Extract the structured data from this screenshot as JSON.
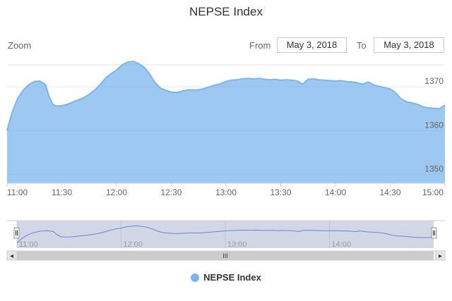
{
  "chart_data": {
    "type": "area",
    "title": "NEPSE Index",
    "xlabel": "",
    "ylabel": "",
    "x_tick_labels": [
      "11:00",
      "11:30",
      "12:00",
      "12:30",
      "13:00",
      "13:30",
      "14:00",
      "14:30",
      "15:00"
    ],
    "y_tick_labels": [
      "1350",
      "1360",
      "1370"
    ],
    "ylim": [
      1348,
      1375
    ],
    "xlim": [
      "11:00",
      "15:00"
    ],
    "grid": true,
    "legend_position": "bottom-center",
    "series": [
      {
        "name": "NEPSE Index",
        "color": "#7cb5ec",
        "x": [
          "11:00",
          "11:03",
          "11:06",
          "11:09",
          "11:12",
          "11:15",
          "11:18",
          "11:21",
          "11:23",
          "11:25",
          "11:27",
          "11:30",
          "11:33",
          "11:36",
          "11:39",
          "11:42",
          "11:45",
          "11:48",
          "11:51",
          "11:54",
          "11:57",
          "12:00",
          "12:03",
          "12:06",
          "12:09",
          "12:12",
          "12:15",
          "12:18",
          "12:21",
          "12:24",
          "12:27",
          "12:30",
          "12:33",
          "12:36",
          "12:39",
          "12:42",
          "12:45",
          "12:48",
          "12:51",
          "12:54",
          "12:57",
          "13:00",
          "13:03",
          "13:06",
          "13:09",
          "13:12",
          "13:15",
          "13:18",
          "13:21",
          "13:24",
          "13:27",
          "13:30",
          "13:33",
          "13:36",
          "13:39",
          "13:42",
          "13:45",
          "13:48",
          "13:51",
          "13:54",
          "13:57",
          "14:00",
          "14:03",
          "14:06",
          "14:09",
          "14:12",
          "14:15",
          "14:18",
          "14:21",
          "14:24",
          "14:27",
          "14:30",
          "14:33",
          "14:36",
          "14:39",
          "14:42",
          "14:45",
          "14:48",
          "14:51",
          "14:54",
          "14:57",
          "15:00"
        ],
        "values": [
          1360,
          1364.5,
          1367.5,
          1369.3,
          1370.5,
          1371.2,
          1371.3,
          1370.5,
          1367.8,
          1366,
          1365.6,
          1365.7,
          1366,
          1366.5,
          1367,
          1367.5,
          1368.3,
          1369.2,
          1370.5,
          1372,
          1373,
          1373.8,
          1375,
          1375.6,
          1375.8,
          1375.3,
          1374.5,
          1373,
          1371,
          1369.7,
          1369.2,
          1368.8,
          1368.7,
          1369,
          1369.3,
          1369.3,
          1369.3,
          1369.6,
          1370,
          1370.4,
          1370.7,
          1371.2,
          1371.5,
          1371.6,
          1371.8,
          1371.9,
          1371.8,
          1371.9,
          1371.7,
          1371.6,
          1371.7,
          1371.5,
          1371.6,
          1371.5,
          1371.3,
          1370.6,
          1371.7,
          1371.8,
          1371.6,
          1371.5,
          1371.4,
          1371.3,
          1371.4,
          1371.2,
          1371.1,
          1370.9,
          1370.6,
          1371.1,
          1370.4,
          1370.1,
          1369.8,
          1369.5,
          1368.6,
          1367.2,
          1366.6,
          1366.3,
          1366,
          1365.4,
          1365.2,
          1365.1,
          1365,
          1365.8
        ]
      }
    ]
  },
  "page": {
    "title": "NEPSE Index",
    "zoom_label": "Zoom",
    "from_label": "From",
    "from_value": "May 3, 2018",
    "to_label": "To",
    "to_value": "May 3, 2018"
  },
  "navigator": {
    "tick_labels": [
      "11:00",
      "12:00",
      "13:00",
      "14:00"
    ],
    "scrollbar_grip": "III",
    "left_arrow": "◂",
    "right_arrow": "▸"
  },
  "legend": {
    "label": "NEPSE Index"
  }
}
